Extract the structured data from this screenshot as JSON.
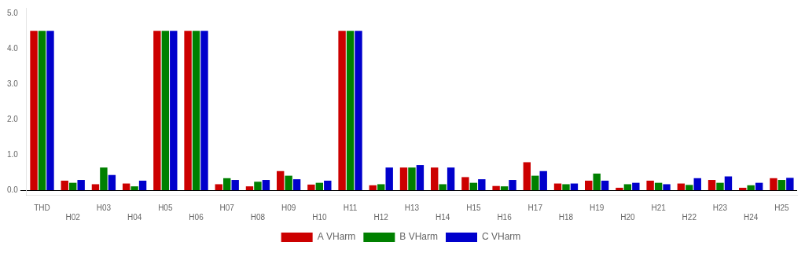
{
  "chart_data": {
    "type": "bar",
    "categories": [
      "THD",
      "H02",
      "H03",
      "H04",
      "H05",
      "H06",
      "H07",
      "H08",
      "H09",
      "H10",
      "H11",
      "H12",
      "H13",
      "H14",
      "H15",
      "H16",
      "H17",
      "H18",
      "H19",
      "H20",
      "H21",
      "H22",
      "H23",
      "H24",
      "H25"
    ],
    "series": [
      {
        "name": "A VHarm",
        "color": "#cc0000",
        "values": [
          4.5,
          0.28,
          0.18,
          0.2,
          4.5,
          4.5,
          0.18,
          0.12,
          0.55,
          0.17,
          4.5,
          0.15,
          0.65,
          0.65,
          0.38,
          0.13,
          0.8,
          0.2,
          0.28,
          0.08,
          0.28,
          0.2,
          0.3,
          0.08,
          0.35
        ]
      },
      {
        "name": "B VHarm",
        "color": "#008000",
        "values": [
          4.5,
          0.22,
          0.65,
          0.12,
          4.5,
          4.5,
          0.35,
          0.25,
          0.42,
          0.22,
          4.5,
          0.18,
          0.65,
          0.18,
          0.22,
          0.12,
          0.42,
          0.18,
          0.48,
          0.18,
          0.22,
          0.16,
          0.22,
          0.15,
          0.3
        ]
      },
      {
        "name": "C VHarm",
        "color": "#0000cc",
        "values": [
          4.5,
          0.3,
          0.44,
          0.28,
          4.5,
          4.5,
          0.3,
          0.3,
          0.32,
          0.28,
          4.5,
          0.65,
          0.72,
          0.65,
          0.32,
          0.3,
          0.55,
          0.2,
          0.28,
          0.22,
          0.18,
          0.35,
          0.4,
          0.22,
          0.36
        ]
      }
    ],
    "ylim": [
      -0.12,
      5.15
    ],
    "yticks": [
      {
        "value": 0,
        "label": "0.0"
      },
      {
        "value": 1,
        "label": "1.0"
      },
      {
        "value": 2,
        "label": "2.0"
      },
      {
        "value": 3,
        "label": "3.0"
      },
      {
        "value": 4,
        "label": "4.0"
      },
      {
        "value": 5,
        "label": "5.0"
      }
    ],
    "grid": false,
    "legend": "bottom"
  }
}
